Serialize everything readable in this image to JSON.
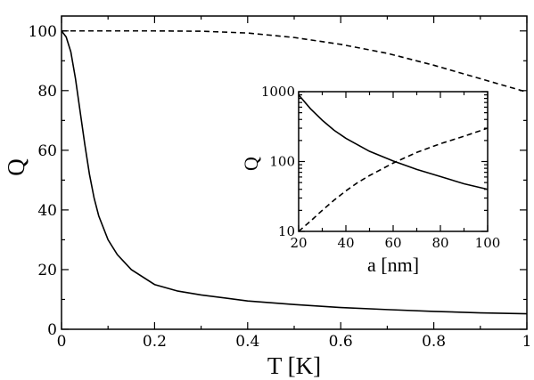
{
  "chart_data": [
    {
      "type": "line",
      "title": "",
      "xlabel": "T [K]",
      "ylabel": "Q",
      "xlim": [
        0,
        1
      ],
      "ylim": [
        0,
        105
      ],
      "xticks": [
        0,
        0.2,
        0.4,
        0.6,
        0.8,
        1
      ],
      "xtick_labels": [
        "0",
        "0.2",
        "0.4",
        "0.6",
        "0.8",
        "1"
      ],
      "yticks": [
        0,
        20,
        40,
        60,
        80,
        100
      ],
      "ytick_labels": [
        "0",
        "20",
        "40",
        "60",
        "80",
        "100"
      ],
      "grid": false,
      "series": [
        {
          "style": "solid",
          "x": [
            0,
            0.01,
            0.02,
            0.03,
            0.04,
            0.05,
            0.06,
            0.07,
            0.08,
            0.1,
            0.12,
            0.15,
            0.2,
            0.25,
            0.3,
            0.4,
            0.5,
            0.6,
            0.7,
            0.8,
            0.9,
            1.0
          ],
          "y": [
            100,
            98,
            93,
            84,
            73,
            62,
            52,
            44,
            38,
            30,
            25,
            20,
            15,
            12.8,
            11.5,
            9.5,
            8.3,
            7.3,
            6.6,
            6.0,
            5.5,
            5.2
          ]
        },
        {
          "style": "dashed",
          "x": [
            0,
            0.1,
            0.2,
            0.3,
            0.4,
            0.5,
            0.6,
            0.7,
            0.8,
            0.9,
            1.0
          ],
          "y": [
            100,
            100,
            100,
            99.9,
            99.3,
            97.8,
            95.5,
            92.5,
            88.5,
            84,
            79.5
          ]
        }
      ]
    },
    {
      "type": "line",
      "title": "",
      "xlabel": "a [nm]",
      "ylabel": "Q",
      "xlim": [
        20,
        100
      ],
      "ylim": [
        10,
        1000
      ],
      "yscale": "log",
      "xticks": [
        20,
        40,
        60,
        80,
        100
      ],
      "xtick_labels": [
        "20",
        "40",
        "60",
        "80",
        "100"
      ],
      "yticks": [
        10,
        100,
        1000
      ],
      "ytick_labels": [
        "10",
        "100",
        "1000"
      ],
      "grid": false,
      "series": [
        {
          "style": "solid",
          "x": [
            20,
            25,
            30,
            35,
            40,
            50,
            60,
            70,
            80,
            90,
            100
          ],
          "y": [
            900,
            570,
            390,
            280,
            215,
            140,
            102,
            77,
            61,
            48,
            40
          ]
        },
        {
          "style": "dashed",
          "x": [
            20,
            25,
            30,
            35,
            40,
            45,
            50,
            60,
            70,
            80,
            90,
            100
          ],
          "y": [
            10,
            14,
            20,
            28,
            38,
            50,
            63,
            95,
            135,
            180,
            230,
            300
          ]
        }
      ]
    }
  ]
}
